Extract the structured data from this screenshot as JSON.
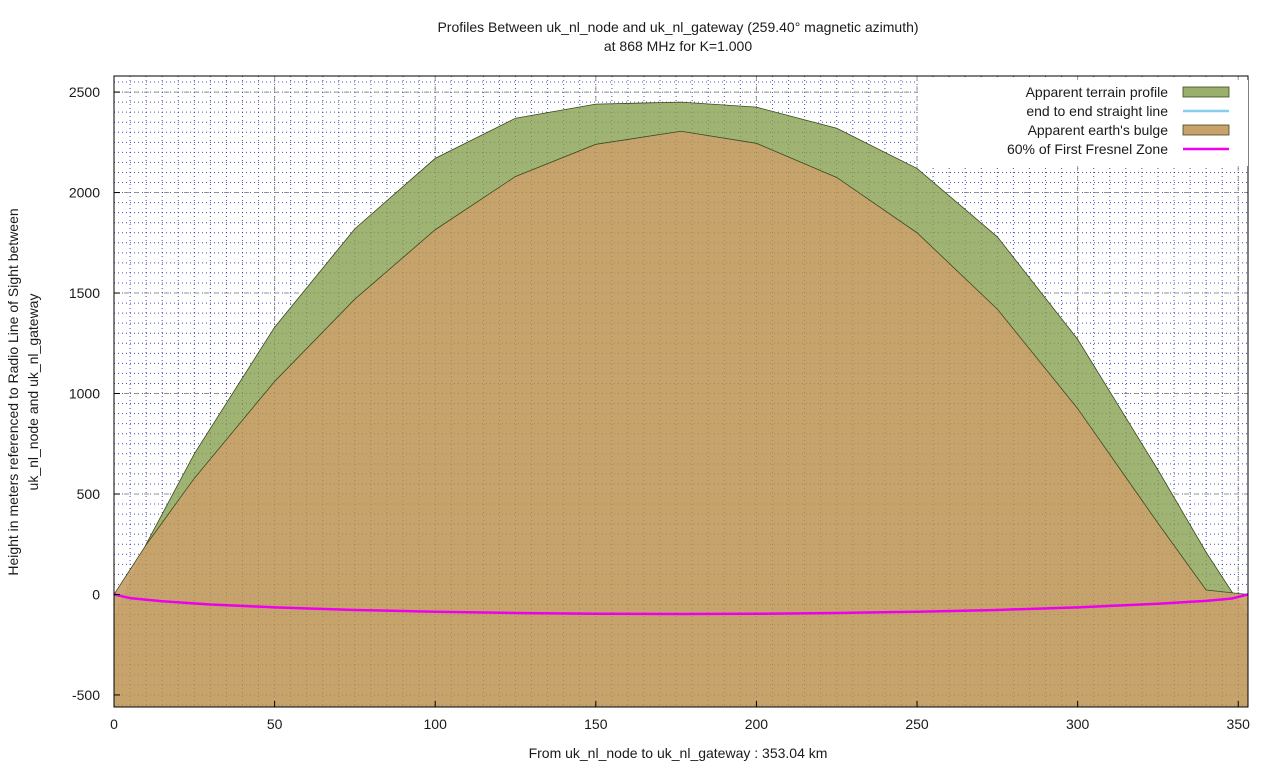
{
  "chart_data": {
    "type": "area",
    "title": "Profiles Between uk_nl_node and uk_nl_gateway (259.40° magnetic azimuth)",
    "subtitle": "at 868 MHz for K=1.000",
    "xlabel": "From uk_nl_node to uk_nl_gateway : 353.04 km",
    "ylabel_line1": "Height in meters referenced to Radio Line of Sight between",
    "ylabel_line2": "uk_nl_node and uk_nl_gateway",
    "xlim": [
      0,
      353.04
    ],
    "ylim": [
      -560,
      2580
    ],
    "xticks": [
      0,
      50,
      100,
      150,
      200,
      250,
      300,
      350
    ],
    "yticks": [
      -500,
      0,
      500,
      1000,
      1500,
      2000,
      2500
    ],
    "grid": true,
    "legend_position": "top-right",
    "series": [
      {
        "name": "Apparent terrain profile",
        "kind": "filled_curve",
        "color": "#9aaf6b",
        "x": [
          0,
          10,
          25,
          50,
          75,
          100,
          125,
          150,
          176.5,
          200,
          225,
          250,
          275,
          300,
          325,
          340,
          353.04
        ],
        "y": [
          -120,
          250,
          700,
          1330,
          1820,
          2170,
          2370,
          2440,
          2450,
          2425,
          2320,
          2120,
          1780,
          1270,
          620,
          210,
          -110
        ]
      },
      {
        "name": "end to end straight line",
        "kind": "line",
        "color": "#87ceeb",
        "x": [
          0,
          353.04
        ],
        "y": [
          0,
          0
        ]
      },
      {
        "name": "Apparent earth's bulge",
        "kind": "filled_curve",
        "color": "#c9a26b",
        "x": [
          0,
          10,
          25,
          50,
          75,
          100,
          125,
          150,
          176.5,
          200,
          225,
          250,
          275,
          300,
          325,
          340,
          353.04
        ],
        "y": [
          0,
          247,
          578,
          1060,
          1470,
          1815,
          2080,
          2240,
          2305,
          2245,
          2075,
          1800,
          1420,
          925,
          355,
          22,
          0
        ]
      },
      {
        "name": "60% of First Fresnel Zone",
        "kind": "line",
        "color": "#ee00ee",
        "x": [
          0,
          5,
          15,
          30,
          50,
          75,
          100,
          125,
          150,
          176.5,
          200,
          225,
          250,
          275,
          300,
          325,
          340,
          348,
          353.04
        ],
        "y": [
          0,
          -18,
          -34,
          -50,
          -64,
          -77,
          -86,
          -92,
          -96,
          -97,
          -96,
          -92,
          -86,
          -77,
          -64,
          -46,
          -32,
          -20,
          0
        ]
      }
    ]
  }
}
